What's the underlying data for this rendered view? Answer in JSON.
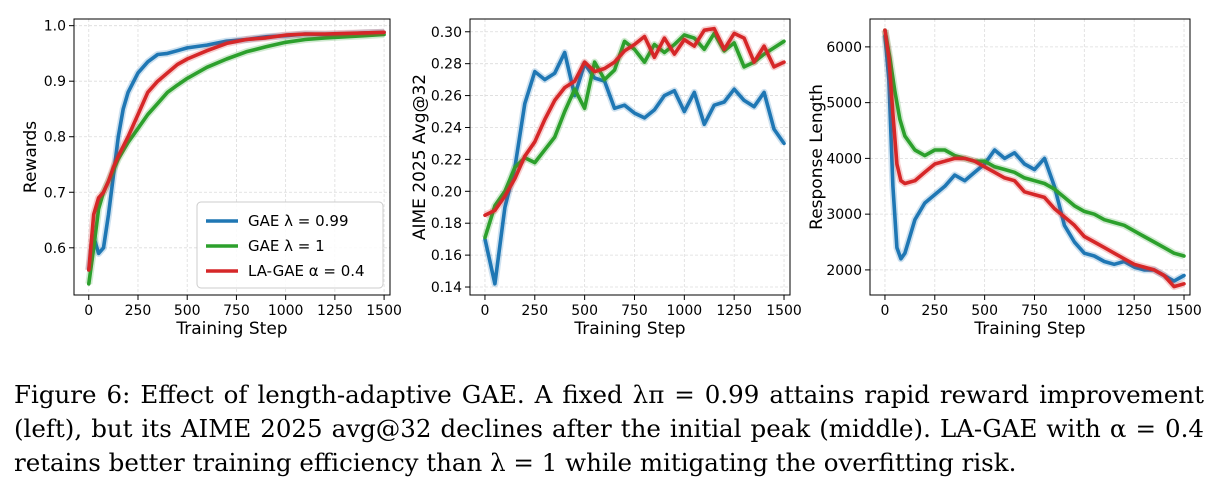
{
  "figure": {
    "caption": "Figure 6: Effect of length-adaptive GAE. A fixed λπ = 0.99 attains rapid reward improvement (left), but its AIME 2025 avg@32 declines after the initial peak (middle). LA-GAE with α = 0.4 retains better training efficiency than λ = 1 while mitigating the overfitting risk."
  },
  "colors": {
    "blue": "#1f77b4",
    "green": "#2ca02c",
    "red": "#d62728"
  },
  "chart_data": [
    {
      "type": "line",
      "xlabel": "Training Step",
      "ylabel": "Rewards",
      "xlim": [
        -75,
        1530
      ],
      "ylim": [
        0.515,
        1.012
      ],
      "xticks": [
        0,
        250,
        500,
        750,
        1000,
        1250,
        1500
      ],
      "yticks": [
        0.6,
        0.7,
        0.8,
        0.9,
        1.0
      ],
      "ytick_labels": [
        "0.6",
        "0.7",
        "0.8",
        "0.9",
        "1.0"
      ],
      "grid": true,
      "legend": "lower-right",
      "series": [
        {
          "name": "GAE λ = 0.99",
          "color": "#1f77b4",
          "x": [
            0,
            25,
            50,
            75,
            100,
            125,
            150,
            175,
            200,
            250,
            300,
            350,
            400,
            450,
            500,
            600,
            700,
            800,
            900,
            1000,
            1100,
            1200,
            1300,
            1400,
            1500
          ],
          "y": [
            0.56,
            0.62,
            0.59,
            0.6,
            0.66,
            0.73,
            0.8,
            0.85,
            0.88,
            0.915,
            0.935,
            0.948,
            0.95,
            0.955,
            0.96,
            0.965,
            0.972,
            0.975,
            0.98,
            0.982,
            0.985,
            0.984,
            0.985,
            0.987,
            0.988
          ]
        },
        {
          "name": "GAE λ = 1",
          "color": "#2ca02c",
          "x": [
            0,
            25,
            50,
            75,
            100,
            125,
            150,
            200,
            250,
            300,
            350,
            400,
            450,
            500,
            600,
            700,
            800,
            900,
            1000,
            1100,
            1200,
            1300,
            1400,
            1500
          ],
          "y": [
            0.535,
            0.6,
            0.67,
            0.7,
            0.72,
            0.74,
            0.76,
            0.79,
            0.815,
            0.84,
            0.86,
            0.88,
            0.893,
            0.905,
            0.925,
            0.94,
            0.953,
            0.962,
            0.97,
            0.975,
            0.978,
            0.98,
            0.982,
            0.984
          ]
        },
        {
          "name": "LA-GAE α = 0.4",
          "color": "#d62728",
          "x": [
            0,
            25,
            50,
            75,
            100,
            125,
            150,
            200,
            250,
            300,
            350,
            400,
            450,
            500,
            600,
            700,
            800,
            900,
            1000,
            1100,
            1200,
            1300,
            1400,
            1500
          ],
          "y": [
            0.56,
            0.66,
            0.69,
            0.7,
            0.72,
            0.745,
            0.765,
            0.8,
            0.84,
            0.88,
            0.9,
            0.915,
            0.93,
            0.94,
            0.955,
            0.968,
            0.975,
            0.978,
            0.983,
            0.985,
            0.985,
            0.986,
            0.987,
            0.988
          ]
        }
      ]
    },
    {
      "type": "line",
      "xlabel": "Training Step",
      "ylabel": "AIME 2025 Avg@32",
      "xlim": [
        -75,
        1530
      ],
      "ylim": [
        0.135,
        0.308
      ],
      "xticks": [
        0,
        250,
        500,
        750,
        1000,
        1250,
        1500
      ],
      "yticks": [
        0.14,
        0.16,
        0.18,
        0.2,
        0.22,
        0.24,
        0.26,
        0.28,
        0.3
      ],
      "ytick_labels": [
        "0.14",
        "0.16",
        "0.18",
        "0.20",
        "0.22",
        "0.24",
        "0.26",
        "0.28",
        "0.30"
      ],
      "grid": true,
      "series": [
        {
          "name": "GAE λ = 0.99",
          "color": "#1f77b4",
          "x": [
            0,
            50,
            100,
            150,
            200,
            250,
            300,
            350,
            400,
            450,
            500,
            550,
            600,
            650,
            700,
            750,
            800,
            850,
            900,
            950,
            1000,
            1050,
            1100,
            1150,
            1200,
            1250,
            1300,
            1350,
            1400,
            1450,
            1500
          ],
          "y": [
            0.17,
            0.142,
            0.19,
            0.215,
            0.255,
            0.275,
            0.27,
            0.274,
            0.287,
            0.26,
            0.28,
            0.271,
            0.269,
            0.252,
            0.254,
            0.249,
            0.246,
            0.251,
            0.26,
            0.263,
            0.25,
            0.262,
            0.242,
            0.254,
            0.256,
            0.264,
            0.257,
            0.253,
            0.262,
            0.239,
            0.23
          ]
        },
        {
          "name": "GAE λ = 1",
          "color": "#2ca02c",
          "x": [
            0,
            50,
            100,
            150,
            200,
            250,
            300,
            350,
            400,
            450,
            500,
            550,
            600,
            650,
            700,
            750,
            800,
            850,
            900,
            950,
            1000,
            1050,
            1100,
            1150,
            1200,
            1250,
            1300,
            1350,
            1400,
            1450,
            1500
          ],
          "y": [
            0.171,
            0.191,
            0.2,
            0.215,
            0.221,
            0.218,
            0.226,
            0.234,
            0.25,
            0.264,
            0.252,
            0.281,
            0.27,
            0.276,
            0.294,
            0.289,
            0.281,
            0.292,
            0.287,
            0.292,
            0.298,
            0.296,
            0.289,
            0.299,
            0.288,
            0.293,
            0.278,
            0.281,
            0.286,
            0.29,
            0.294
          ]
        },
        {
          "name": "LA-GAE α = 0.4",
          "color": "#d62728",
          "x": [
            0,
            50,
            100,
            150,
            200,
            250,
            300,
            350,
            400,
            450,
            500,
            550,
            600,
            650,
            700,
            750,
            800,
            850,
            900,
            950,
            1000,
            1050,
            1100,
            1150,
            1200,
            1250,
            1300,
            1350,
            1400,
            1450,
            1500
          ],
          "y": [
            0.185,
            0.188,
            0.197,
            0.208,
            0.222,
            0.231,
            0.245,
            0.257,
            0.265,
            0.269,
            0.281,
            0.275,
            0.277,
            0.281,
            0.288,
            0.292,
            0.297,
            0.284,
            0.296,
            0.286,
            0.295,
            0.291,
            0.301,
            0.302,
            0.289,
            0.299,
            0.296,
            0.281,
            0.291,
            0.278,
            0.281
          ]
        }
      ]
    },
    {
      "type": "line",
      "xlabel": "Training Step",
      "ylabel": "Response Length",
      "xlim": [
        -75,
        1530
      ],
      "ylim": [
        1550,
        6500
      ],
      "xticks": [
        0,
        250,
        500,
        750,
        1000,
        1250,
        1500
      ],
      "yticks": [
        2000,
        3000,
        4000,
        5000,
        6000
      ],
      "ytick_labels": [
        "2000",
        "3000",
        "4000",
        "5000",
        "6000"
      ],
      "grid": true,
      "series": [
        {
          "name": "GAE λ = 0.99",
          "color": "#1f77b4",
          "x": [
            0,
            20,
            40,
            60,
            80,
            100,
            125,
            150,
            200,
            250,
            300,
            350,
            400,
            450,
            500,
            550,
            600,
            650,
            700,
            750,
            800,
            850,
            900,
            950,
            1000,
            1050,
            1100,
            1150,
            1200,
            1250,
            1300,
            1350,
            1400,
            1450,
            1500
          ],
          "y": [
            6200,
            5400,
            3500,
            2400,
            2200,
            2300,
            2600,
            2900,
            3200,
            3350,
            3500,
            3700,
            3600,
            3750,
            3900,
            4150,
            4000,
            4100,
            3900,
            3800,
            4000,
            3500,
            2800,
            2500,
            2300,
            2250,
            2150,
            2100,
            2150,
            2050,
            2000,
            2000,
            1900,
            1800,
            1900
          ]
        },
        {
          "name": "GAE λ = 1",
          "color": "#2ca02c",
          "x": [
            0,
            25,
            50,
            75,
            100,
            150,
            200,
            250,
            300,
            350,
            400,
            450,
            500,
            550,
            600,
            650,
            700,
            750,
            800,
            850,
            900,
            950,
            1000,
            1050,
            1100,
            1150,
            1200,
            1250,
            1300,
            1350,
            1400,
            1450,
            1500
          ],
          "y": [
            6300,
            5800,
            5200,
            4700,
            4400,
            4150,
            4050,
            4150,
            4150,
            4050,
            4000,
            3950,
            3950,
            3850,
            3800,
            3750,
            3650,
            3600,
            3550,
            3450,
            3300,
            3150,
            3050,
            3000,
            2900,
            2850,
            2800,
            2700,
            2600,
            2500,
            2400,
            2300,
            2250
          ]
        },
        {
          "name": "LA-GAE α = 0.4",
          "color": "#d62728",
          "x": [
            0,
            20,
            40,
            60,
            80,
            100,
            150,
            200,
            250,
            300,
            350,
            400,
            450,
            500,
            550,
            600,
            650,
            700,
            750,
            800,
            850,
            900,
            950,
            1000,
            1050,
            1100,
            1150,
            1200,
            1250,
            1300,
            1350,
            1400,
            1450,
            1500
          ],
          "y": [
            6300,
            5800,
            4800,
            3900,
            3600,
            3550,
            3600,
            3750,
            3900,
            3950,
            4000,
            4000,
            3950,
            3850,
            3750,
            3650,
            3600,
            3400,
            3350,
            3300,
            3100,
            2950,
            2800,
            2600,
            2500,
            2400,
            2300,
            2200,
            2100,
            2050,
            2000,
            1900,
            1700,
            1750
          ]
        }
      ]
    }
  ]
}
